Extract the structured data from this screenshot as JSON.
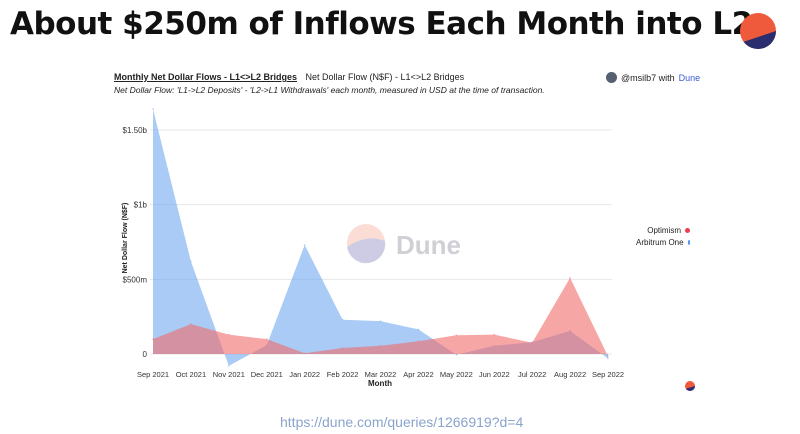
{
  "slide": {
    "title": "About $250m of Inflows Each Month into L2s",
    "footer_url": "https://dune.com/queries/1266919?d=4"
  },
  "chart_header": {
    "title": "Monthly Net Dollar Flows - L1<>L2 Bridges",
    "subtitle": "Net Dollar Flow (N$F) - L1<>L2 Bridges",
    "description": "Net Dollar Flow: 'L1->L2 Deposits' - 'L2->L1 Withdrawals' each month, measured in USD at the time of transaction.",
    "credit_user": "@msilb7 with ",
    "credit_brand": "Dune",
    "watermark": "Dune"
  },
  "colors": {
    "optimism": "#f26b6b",
    "arbitrum": "#6fa8f0",
    "brand_orange": "#f05a3c",
    "brand_navy": "#2b2d6e"
  },
  "chart_data": {
    "type": "area",
    "xlabel": "Month",
    "ylabel": "Net Dollar Flow (N$F)",
    "ylim": [
      -100000000,
      1650000000
    ],
    "y_ticks": [
      {
        "value": 0,
        "label": "0"
      },
      {
        "value": 500000000,
        "label": "$500m"
      },
      {
        "value": 1000000000,
        "label": "$1b"
      },
      {
        "value": 1500000000,
        "label": "$1.50b"
      }
    ],
    "categories": [
      "Sep 2021",
      "Oct 2021",
      "Nov 2021",
      "Dec 2021",
      "Jan 2022",
      "Feb 2022",
      "Mar 2022",
      "Apr 2022",
      "May 2022",
      "Jun 2022",
      "Jul 2022",
      "Aug 2022",
      "Sep 2022"
    ],
    "legend_position": "right",
    "series": [
      {
        "name": "Optimism",
        "color_key": "optimism",
        "values": [
          100000000,
          200000000,
          130000000,
          100000000,
          5000000,
          40000000,
          55000000,
          85000000,
          125000000,
          130000000,
          75000000,
          510000000,
          -15000000
        ]
      },
      {
        "name": "Arbitrum One",
        "color_key": "arbitrum",
        "values": [
          1640000000,
          620000000,
          -80000000,
          60000000,
          730000000,
          230000000,
          220000000,
          165000000,
          -5000000,
          55000000,
          80000000,
          155000000,
          -30000000
        ]
      }
    ]
  }
}
